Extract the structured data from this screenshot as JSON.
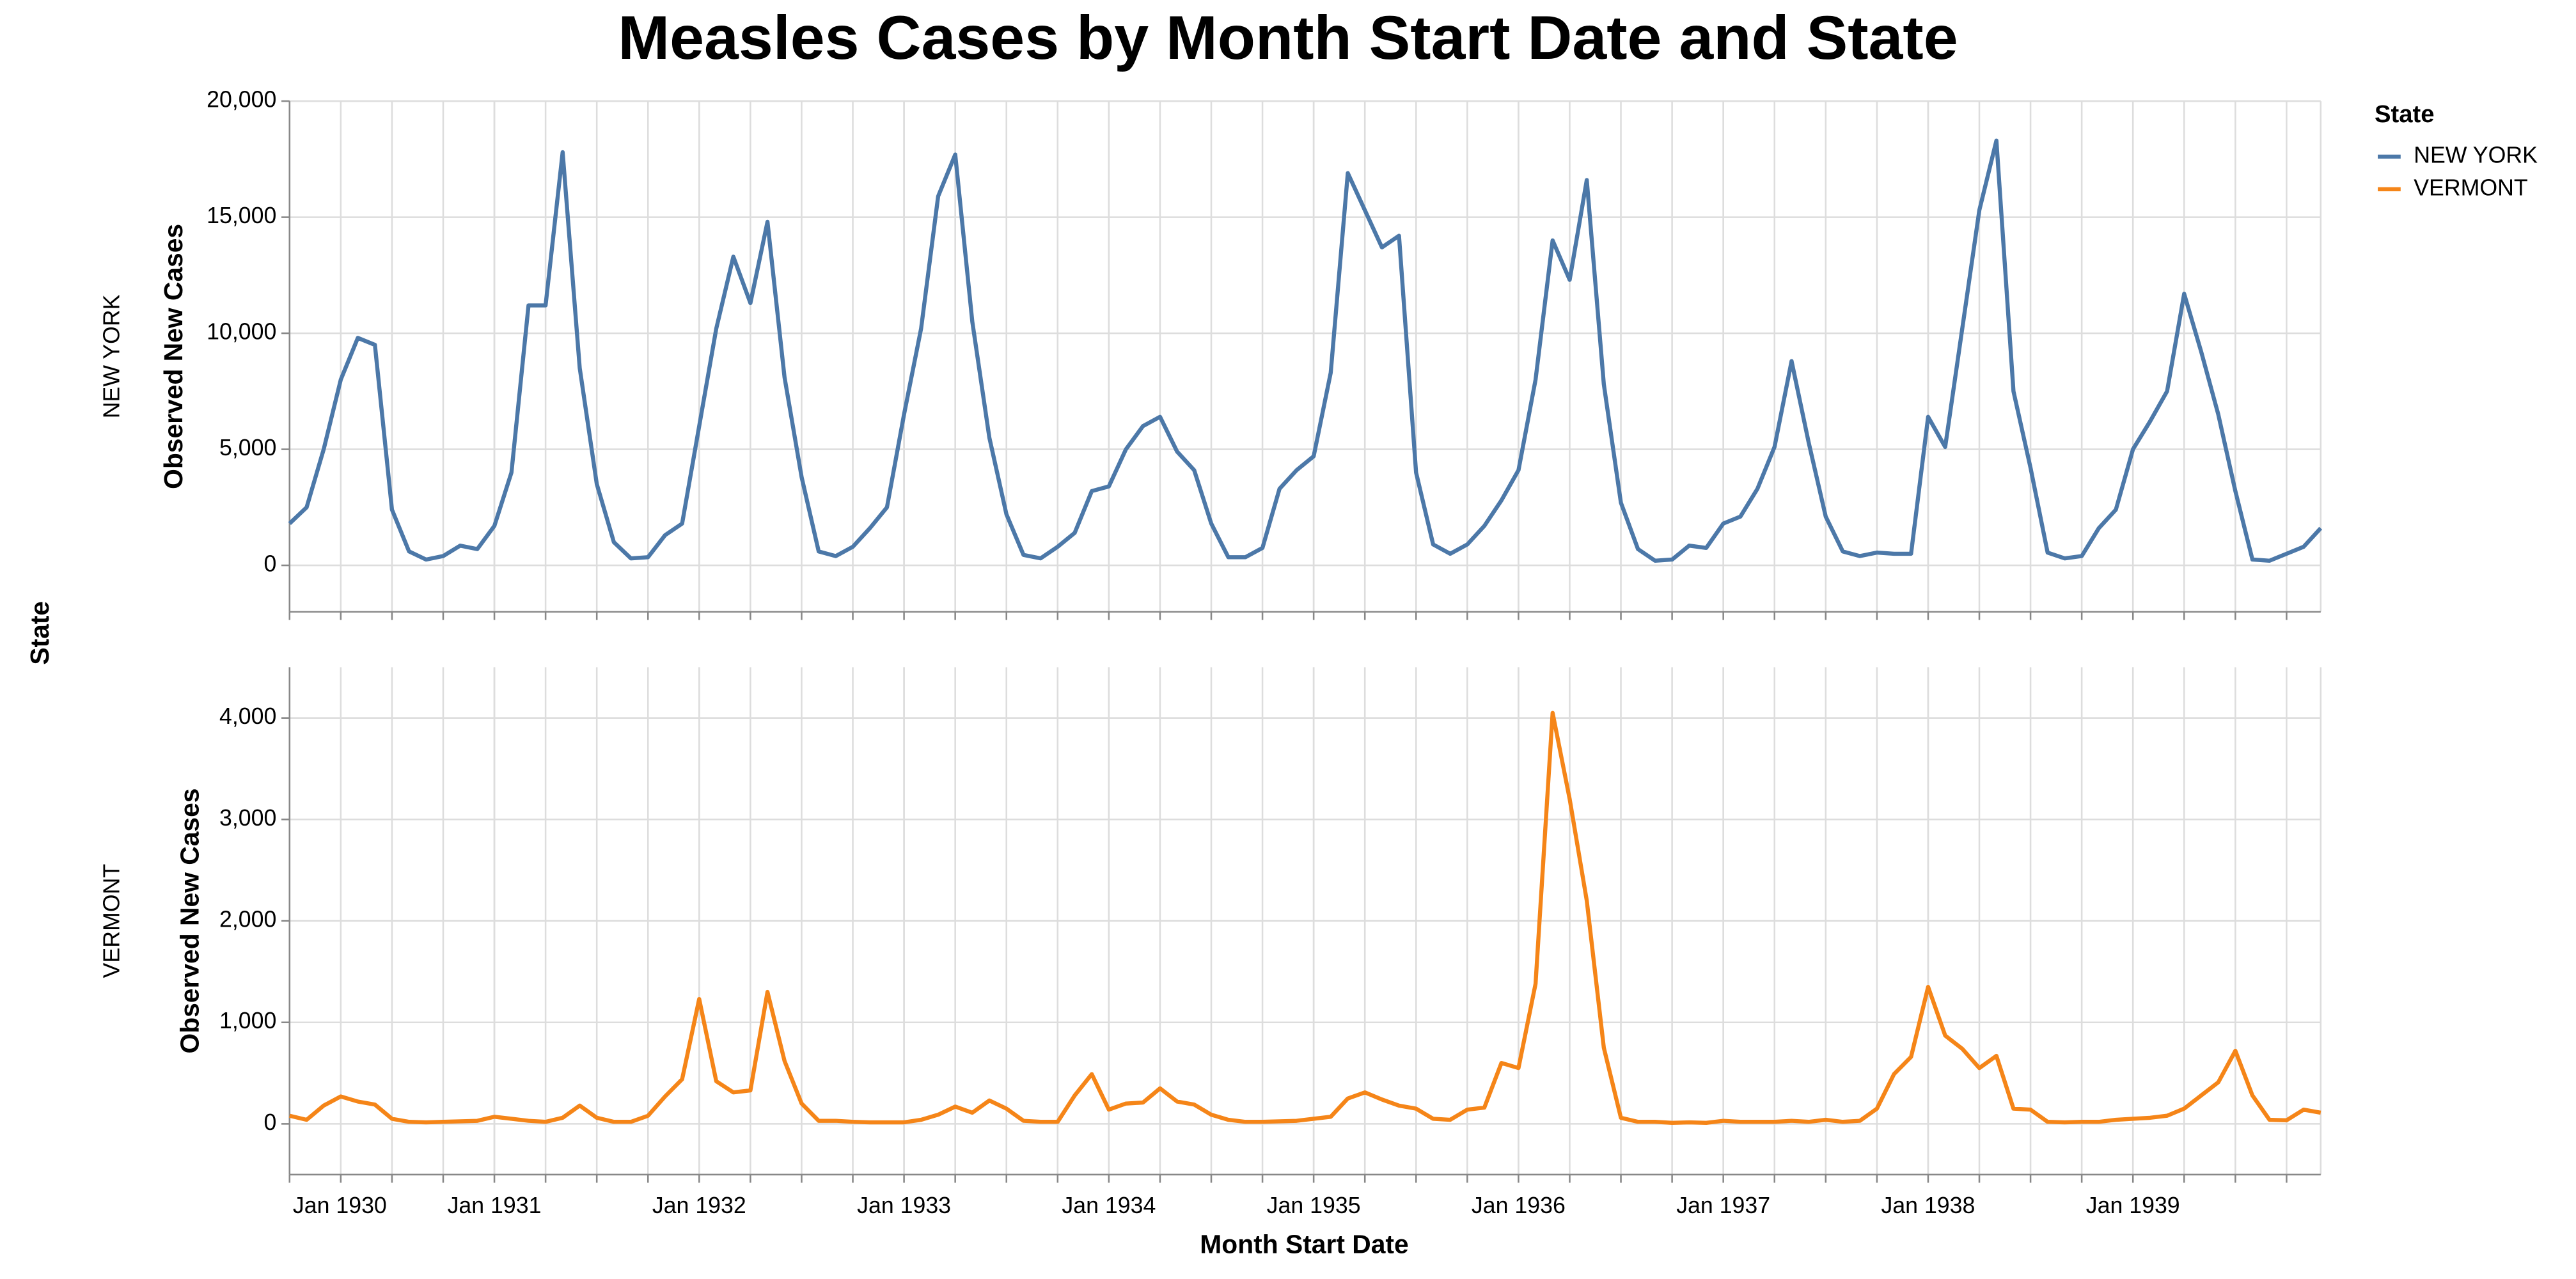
{
  "title": "Measles Cases by Month Start Date and State",
  "facet_label": "State",
  "legend_title": "State",
  "x_label": "Month Start Date",
  "chart_data": [
    {
      "type": "line",
      "facet": "NEW YORK",
      "y_label": "Observed New Cases",
      "x": [
        "1930-01",
        "1930-02",
        "1930-03",
        "1930-04",
        "1930-05",
        "1930-06",
        "1930-07",
        "1930-08",
        "1930-09",
        "1930-10",
        "1930-11",
        "1930-12",
        "1931-01",
        "1931-02",
        "1931-03",
        "1931-04",
        "1931-05",
        "1931-06",
        "1931-07",
        "1931-08",
        "1931-09",
        "1931-10",
        "1931-11",
        "1931-12",
        "1932-01",
        "1932-02",
        "1932-03",
        "1932-04",
        "1932-05",
        "1932-06",
        "1932-07",
        "1932-08",
        "1932-09",
        "1932-10",
        "1932-11",
        "1932-12",
        "1933-01",
        "1933-02",
        "1933-03",
        "1933-04",
        "1933-05",
        "1933-06",
        "1933-07",
        "1933-08",
        "1933-09",
        "1933-10",
        "1933-11",
        "1933-12",
        "1934-01",
        "1934-02",
        "1934-03",
        "1934-04",
        "1934-05",
        "1934-06",
        "1934-07",
        "1934-08",
        "1934-09",
        "1934-10",
        "1934-11",
        "1934-12",
        "1935-01",
        "1935-02",
        "1935-03",
        "1935-04",
        "1935-05",
        "1935-06",
        "1935-07",
        "1935-08",
        "1935-09",
        "1935-10",
        "1935-11",
        "1935-12",
        "1936-01",
        "1936-02",
        "1936-03",
        "1936-04",
        "1936-05",
        "1936-06",
        "1936-07",
        "1936-08",
        "1936-09",
        "1936-10",
        "1936-11",
        "1936-12",
        "1937-01",
        "1937-02",
        "1937-03",
        "1937-04",
        "1937-05",
        "1937-06",
        "1937-07",
        "1937-08",
        "1937-09",
        "1937-10",
        "1937-11",
        "1937-12",
        "1938-01",
        "1938-02",
        "1938-03",
        "1938-04",
        "1938-05",
        "1938-06",
        "1938-07",
        "1938-08",
        "1938-09",
        "1938-10",
        "1938-11",
        "1938-12",
        "1939-01",
        "1939-02",
        "1939-03",
        "1939-04",
        "1939-05",
        "1939-06",
        "1939-07",
        "1939-08",
        "1939-09",
        "1939-10",
        "1939-11",
        "1939-12"
      ],
      "xlim": [
        "1930-01",
        "1939-12"
      ],
      "xticks": [
        {
          "value": "1930-01",
          "label": "Jan 1930"
        },
        {
          "value": "1931-01",
          "label": "Jan 1931"
        },
        {
          "value": "1932-01",
          "label": "Jan 1932"
        },
        {
          "value": "1933-01",
          "label": "Jan 1933"
        },
        {
          "value": "1934-01",
          "label": "Jan 1934"
        },
        {
          "value": "1935-01",
          "label": "Jan 1935"
        },
        {
          "value": "1936-01",
          "label": "Jan 1936"
        },
        {
          "value": "1937-01",
          "label": "Jan 1937"
        },
        {
          "value": "1938-01",
          "label": "Jan 1938"
        },
        {
          "value": "1939-01",
          "label": "Jan 1939"
        }
      ],
      "ylim": [
        -2000,
        20000
      ],
      "yticks": [
        0,
        {
          "value": 5000,
          "label": "5,000"
        },
        {
          "value": 10000,
          "label": "10,000"
        },
        {
          "value": 15000,
          "label": "15,000"
        },
        {
          "value": 20000,
          "label": "20,000"
        }
      ],
      "grid": true,
      "series": [
        {
          "name": "NEW YORK",
          "color": "#4c78a8",
          "values": [
            1800,
            2500,
            5000,
            8000,
            9800,
            9500,
            2400,
            600,
            250,
            400,
            850,
            700,
            1700,
            4000,
            11200,
            11200,
            17800,
            8500,
            3500,
            1000,
            300,
            350,
            1300,
            1800,
            6000,
            10200,
            13300,
            11300,
            14800,
            8100,
            3800,
            600,
            400,
            800,
            1600,
            2500,
            6500,
            10200,
            15900,
            17700,
            10500,
            5500,
            2200,
            450,
            300,
            800,
            1400,
            3200,
            3400,
            5000,
            6000,
            6400,
            4900,
            4100,
            1800,
            350,
            350,
            750,
            3300,
            4100,
            4700,
            8300,
            16900,
            15300,
            13700,
            14200,
            4000,
            900,
            500,
            900,
            1700,
            2800,
            4100,
            8000,
            14000,
            12300,
            16600,
            7800,
            2700,
            700,
            200,
            250,
            850,
            750,
            1800,
            2100,
            3300,
            5100,
            8800,
            5300,
            2100,
            600,
            400,
            550,
            500,
            500,
            6400,
            5100,
            10200,
            15300,
            18300,
            7500,
            4200,
            550,
            300,
            400,
            1600,
            2400,
            5000,
            6200,
            7500,
            11700,
            9200,
            6500,
            3200,
            250,
            200,
            500,
            800,
            1600
          ]
        }
      ]
    },
    {
      "type": "line",
      "facet": "VERMONT",
      "y_label": "Observed New Cases",
      "x": [
        "1930-01",
        "1930-02",
        "1930-03",
        "1930-04",
        "1930-05",
        "1930-06",
        "1930-07",
        "1930-08",
        "1930-09",
        "1930-10",
        "1930-11",
        "1930-12",
        "1931-01",
        "1931-02",
        "1931-03",
        "1931-04",
        "1931-05",
        "1931-06",
        "1931-07",
        "1931-08",
        "1931-09",
        "1931-10",
        "1931-11",
        "1931-12",
        "1932-01",
        "1932-02",
        "1932-03",
        "1932-04",
        "1932-05",
        "1932-06",
        "1932-07",
        "1932-08",
        "1932-09",
        "1932-10",
        "1932-11",
        "1932-12",
        "1933-01",
        "1933-02",
        "1933-03",
        "1933-04",
        "1933-05",
        "1933-06",
        "1933-07",
        "1933-08",
        "1933-09",
        "1933-10",
        "1933-11",
        "1933-12",
        "1934-01",
        "1934-02",
        "1934-03",
        "1934-04",
        "1934-05",
        "1934-06",
        "1934-07",
        "1934-08",
        "1934-09",
        "1934-10",
        "1934-11",
        "1934-12",
        "1935-01",
        "1935-02",
        "1935-03",
        "1935-04",
        "1935-05",
        "1935-06",
        "1935-07",
        "1935-08",
        "1935-09",
        "1935-10",
        "1935-11",
        "1935-12",
        "1936-01",
        "1936-02",
        "1936-03",
        "1936-04",
        "1936-05",
        "1936-06",
        "1936-07",
        "1936-08",
        "1936-09",
        "1936-10",
        "1936-11",
        "1936-12",
        "1937-01",
        "1937-02",
        "1937-03",
        "1937-04",
        "1937-05",
        "1937-06",
        "1937-07",
        "1937-08",
        "1937-09",
        "1937-10",
        "1937-11",
        "1937-12",
        "1938-01",
        "1938-02",
        "1938-03",
        "1938-04",
        "1938-05",
        "1938-06",
        "1938-07",
        "1938-08",
        "1938-09",
        "1938-10",
        "1938-11",
        "1938-12",
        "1939-01",
        "1939-02",
        "1939-03",
        "1939-04",
        "1939-05",
        "1939-06",
        "1939-07",
        "1939-08",
        "1939-09",
        "1939-10",
        "1939-11",
        "1939-12"
      ],
      "xlim": [
        "1930-01",
        "1939-12"
      ],
      "xticks": [
        {
          "value": "1930-01",
          "label": "Jan 1930"
        },
        {
          "value": "1931-01",
          "label": "Jan 1931"
        },
        {
          "value": "1932-01",
          "label": "Jan 1932"
        },
        {
          "value": "1933-01",
          "label": "Jan 1933"
        },
        {
          "value": "1934-01",
          "label": "Jan 1934"
        },
        {
          "value": "1935-01",
          "label": "Jan 1935"
        },
        {
          "value": "1936-01",
          "label": "Jan 1936"
        },
        {
          "value": "1937-01",
          "label": "Jan 1937"
        },
        {
          "value": "1938-01",
          "label": "Jan 1938"
        },
        {
          "value": "1939-01",
          "label": "Jan 1939"
        }
      ],
      "ylim": [
        -500,
        4500
      ],
      "yticks": [
        0,
        {
          "value": 1000,
          "label": "1,000"
        },
        {
          "value": 2000,
          "label": "2,000"
        },
        {
          "value": 3000,
          "label": "3,000"
        },
        {
          "value": 4000,
          "label": "4,000"
        }
      ],
      "grid": true,
      "series": [
        {
          "name": "VERMONT",
          "color": "#f58518",
          "values": [
            80,
            40,
            180,
            270,
            220,
            190,
            50,
            20,
            15,
            20,
            25,
            30,
            70,
            50,
            30,
            20,
            60,
            180,
            60,
            20,
            20,
            80,
            270,
            440,
            1230,
            420,
            310,
            330,
            1300,
            620,
            200,
            30,
            30,
            20,
            15,
            15,
            15,
            40,
            90,
            170,
            110,
            230,
            150,
            30,
            20,
            20,
            280,
            490,
            140,
            200,
            210,
            350,
            220,
            190,
            90,
            40,
            20,
            20,
            25,
            30,
            50,
            70,
            250,
            310,
            240,
            180,
            150,
            50,
            40,
            140,
            160,
            600,
            550,
            1380,
            4050,
            3200,
            2200,
            750,
            60,
            20,
            20,
            10,
            15,
            10,
            30,
            20,
            20,
            20,
            30,
            20,
            40,
            20,
            30,
            150,
            490,
            660,
            1350,
            870,
            740,
            550,
            670,
            150,
            140,
            20,
            15,
            20,
            20,
            40,
            50,
            60,
            80,
            150,
            280,
            410,
            720,
            280,
            40,
            35,
            140,
            110
          ]
        }
      ]
    }
  ]
}
